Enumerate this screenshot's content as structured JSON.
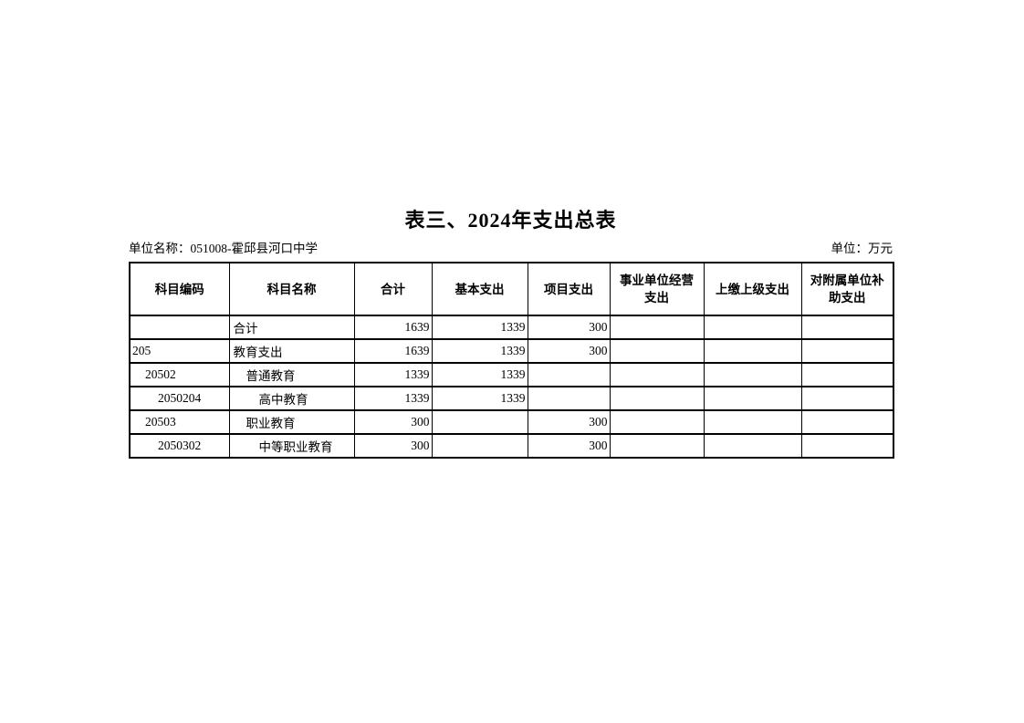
{
  "page": {
    "title": "表三、2024年支出总表",
    "unit_name": "单位名称：051008-霍邱县河口中学",
    "unit_measure": "单位：万元"
  },
  "table": {
    "headers": [
      "科目编码",
      "科目名称",
      "合计",
      "基本支出",
      "项目支出",
      "事业单位经营支出",
      "上缴上级支出",
      "对附属单位补助支出"
    ],
    "rows": [
      {
        "code": "",
        "name": "合计",
        "indent": 0,
        "total": "1639",
        "basic": "1339",
        "project": "300",
        "operating": "",
        "upper": "",
        "subsidiary": ""
      },
      {
        "code": "205",
        "name": "教育支出",
        "indent": 0,
        "total": "1639",
        "basic": "1339",
        "project": "300",
        "operating": "",
        "upper": "",
        "subsidiary": ""
      },
      {
        "code": "20502",
        "name": "普通教育",
        "indent": 1,
        "total": "1339",
        "basic": "1339",
        "project": "",
        "operating": "",
        "upper": "",
        "subsidiary": ""
      },
      {
        "code": "2050204",
        "name": "高中教育",
        "indent": 2,
        "total": "1339",
        "basic": "1339",
        "project": "",
        "operating": "",
        "upper": "",
        "subsidiary": ""
      },
      {
        "code": "20503",
        "name": "职业教育",
        "indent": 1,
        "total": "300",
        "basic": "",
        "project": "300",
        "operating": "",
        "upper": "",
        "subsidiary": ""
      },
      {
        "code": "2050302",
        "name": "中等职业教育",
        "indent": 2,
        "total": "300",
        "basic": "",
        "project": "300",
        "operating": "",
        "upper": "",
        "subsidiary": ""
      }
    ]
  }
}
